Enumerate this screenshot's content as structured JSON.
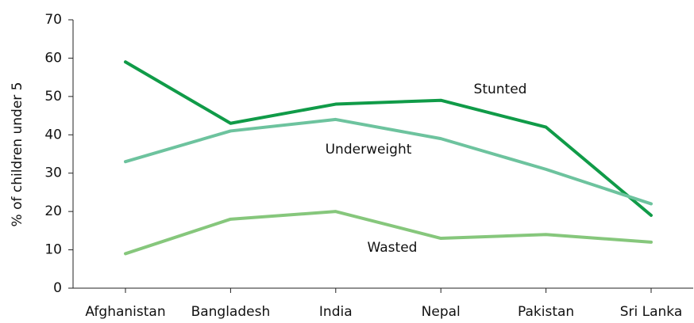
{
  "chart_data": {
    "type": "line",
    "y_label": "% of children under 5",
    "categories": [
      "Afghanistan",
      "Bangladesh",
      "India",
      "Nepal",
      "Pakistan",
      "Sri Lanka"
    ],
    "series": [
      {
        "name": "Stunted",
        "color": "#109b48",
        "values": [
          59,
          43,
          48,
          49,
          42,
          19
        ]
      },
      {
        "name": "Underweight",
        "color": "#6dc39e",
        "values": [
          33,
          41,
          44,
          39,
          31,
          22
        ]
      },
      {
        "name": "Wasted",
        "color": "#86c77c",
        "values": [
          9,
          18,
          20,
          13,
          14,
          12
        ]
      }
    ],
    "ylim": [
      0,
      70
    ],
    "yticks": [
      0,
      10,
      20,
      30,
      40,
      50,
      60,
      70
    ],
    "grid": false
  }
}
